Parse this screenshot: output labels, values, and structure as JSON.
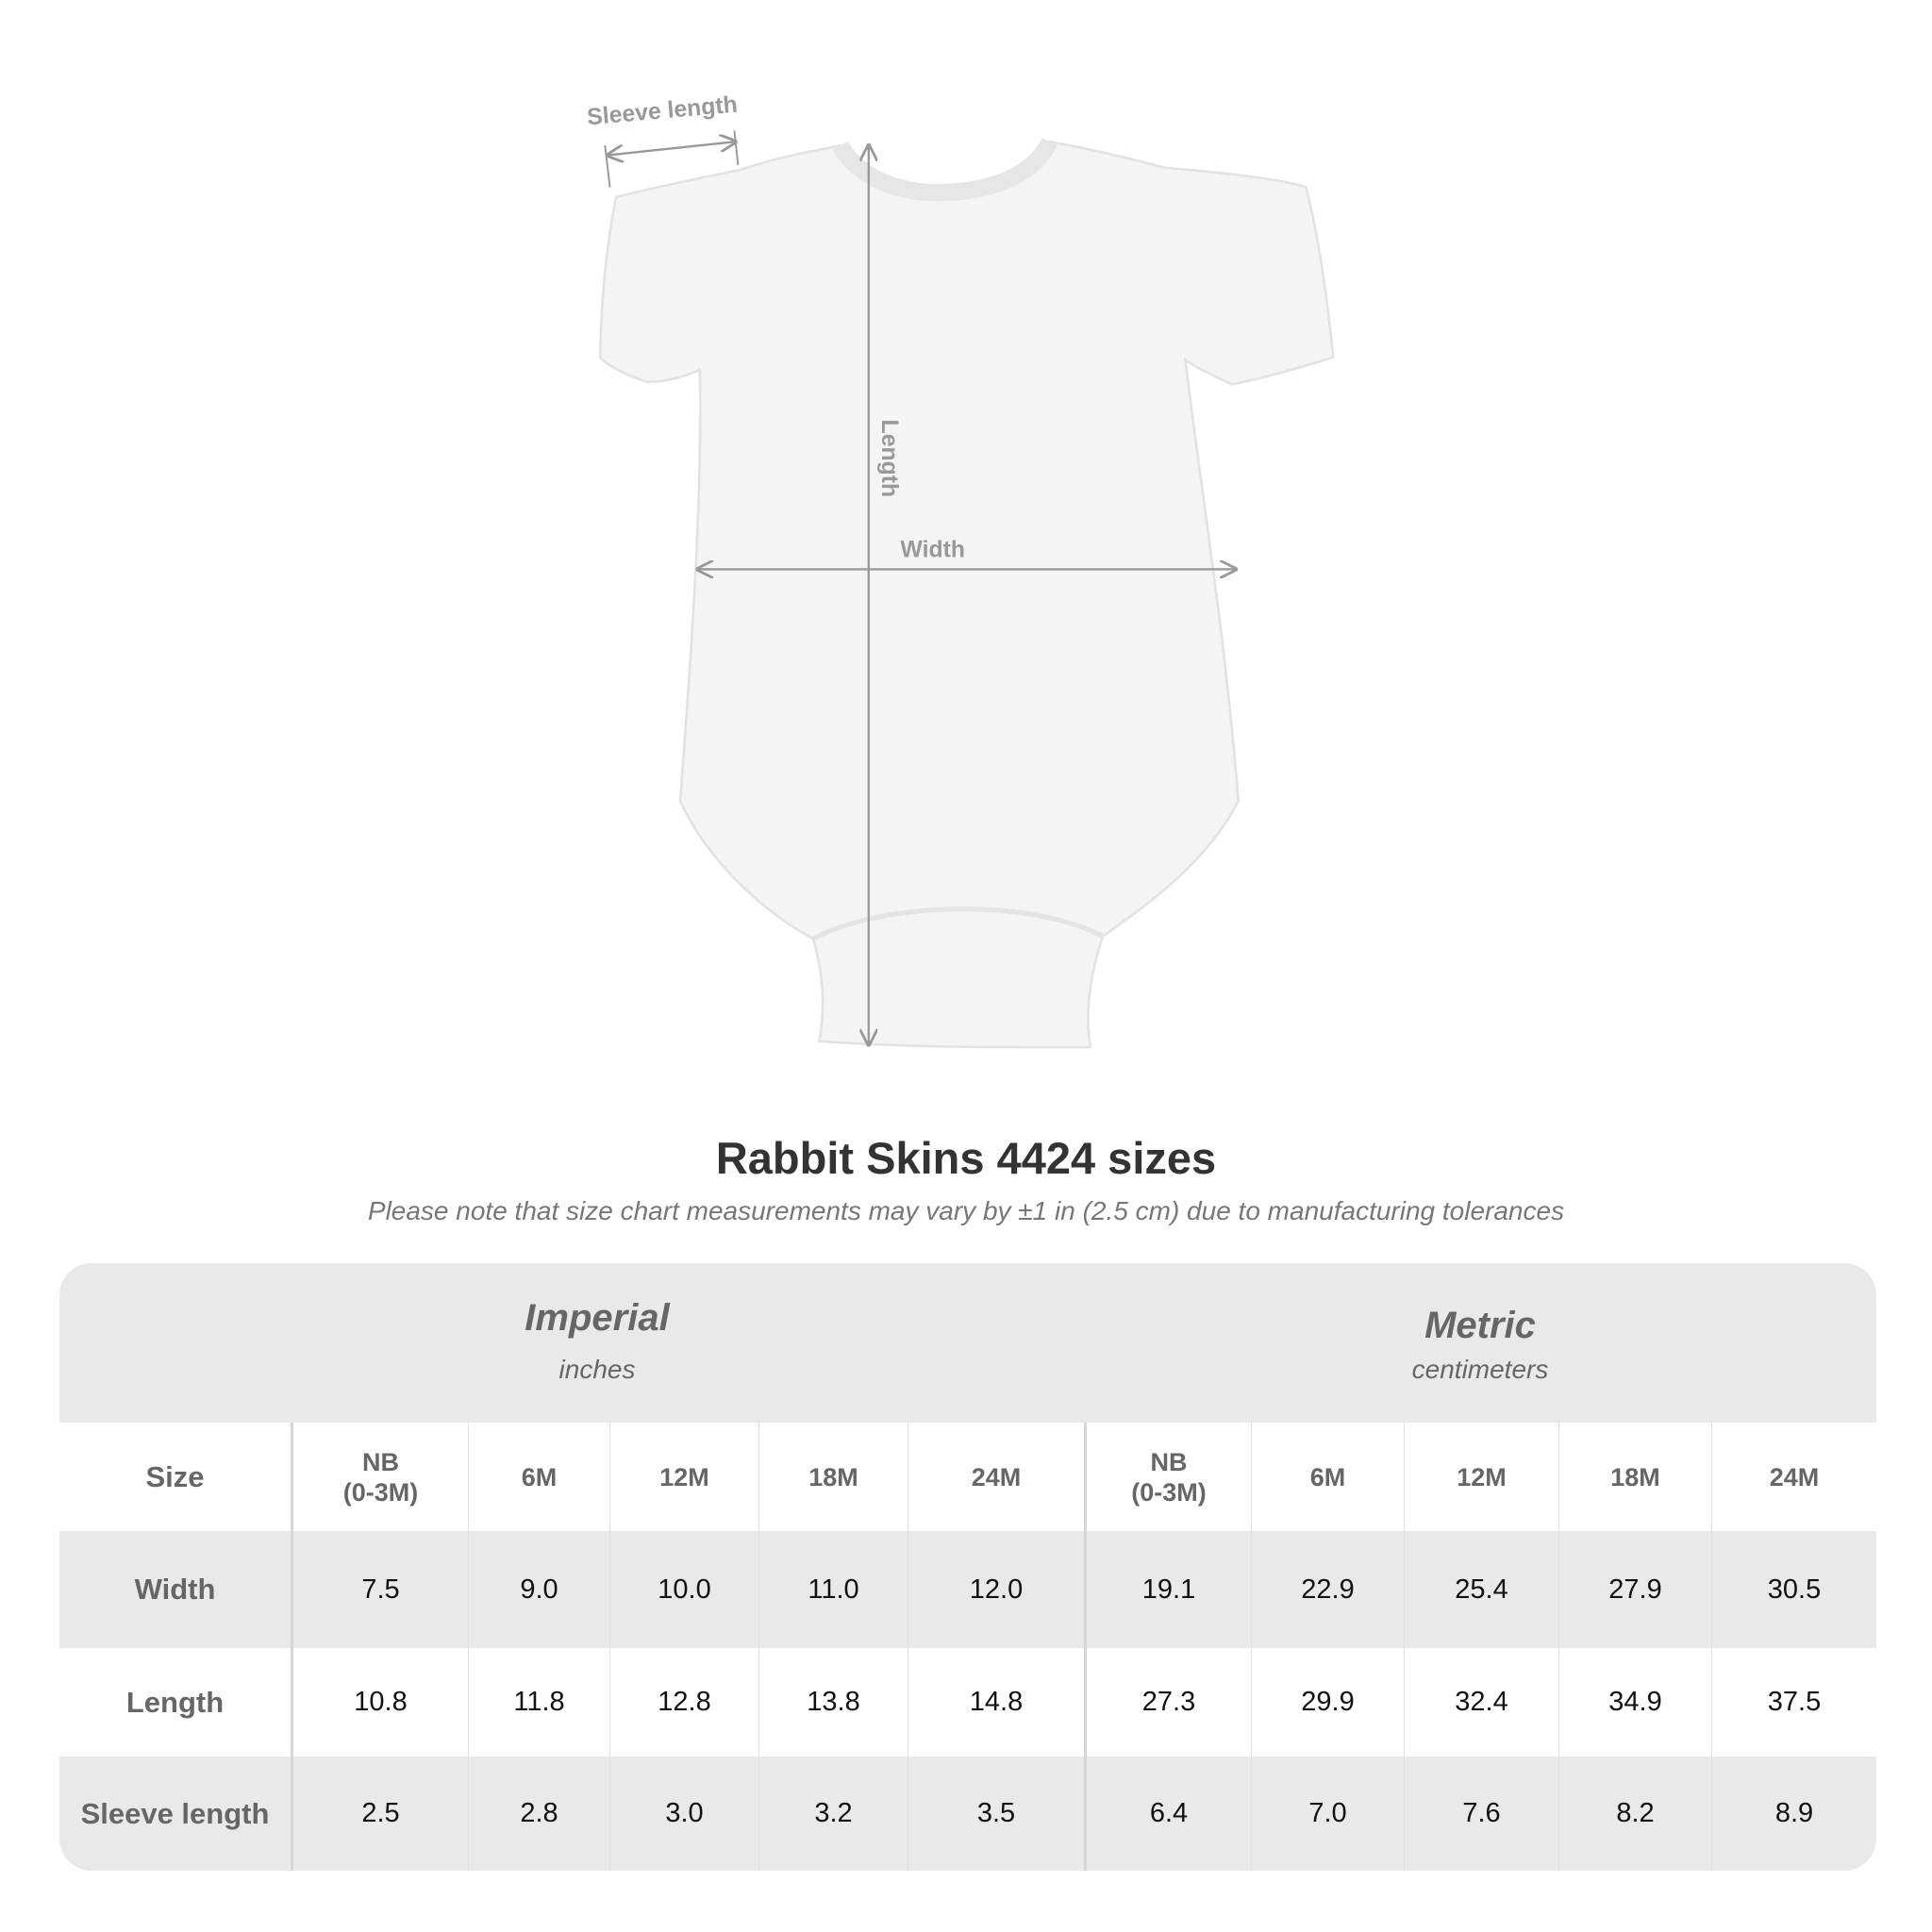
{
  "diagram": {
    "labels": {
      "sleeve_length": "Sleeve length",
      "length": "Length",
      "width": "Width"
    },
    "garment_color": "#f4f4f4",
    "line_color": "#999999"
  },
  "title": "Rabbit Skins 4424 sizes",
  "subtitle": "Please note that size chart measurements may vary by ±1 in (2.5 cm) due to manufacturing tolerances",
  "table": {
    "groups": [
      {
        "name": "Imperial",
        "unit": "inches"
      },
      {
        "name": "Metric",
        "unit": "centimeters"
      }
    ],
    "size_label": "Size",
    "sizes": [
      [
        "NB",
        "(0-3M)"
      ],
      [
        "6M"
      ],
      [
        "12M"
      ],
      [
        "18M"
      ],
      [
        "24M"
      ]
    ],
    "rows": [
      {
        "label": "Width",
        "imperial": [
          "7.5",
          "9.0",
          "10.0",
          "11.0",
          "12.0"
        ],
        "metric": [
          "19.1",
          "22.9",
          "25.4",
          "27.9",
          "30.5"
        ]
      },
      {
        "label": "Length",
        "imperial": [
          "10.8",
          "11.8",
          "12.8",
          "13.8",
          "14.8"
        ],
        "metric": [
          "27.3",
          "29.9",
          "32.4",
          "34.9",
          "37.5"
        ]
      },
      {
        "label": "Sleeve length",
        "imperial": [
          "2.5",
          "2.8",
          "3.0",
          "3.2",
          "3.5"
        ],
        "metric": [
          "6.4",
          "7.0",
          "7.6",
          "8.2",
          "8.9"
        ]
      }
    ],
    "header_bg": "#e9e9e9"
  }
}
